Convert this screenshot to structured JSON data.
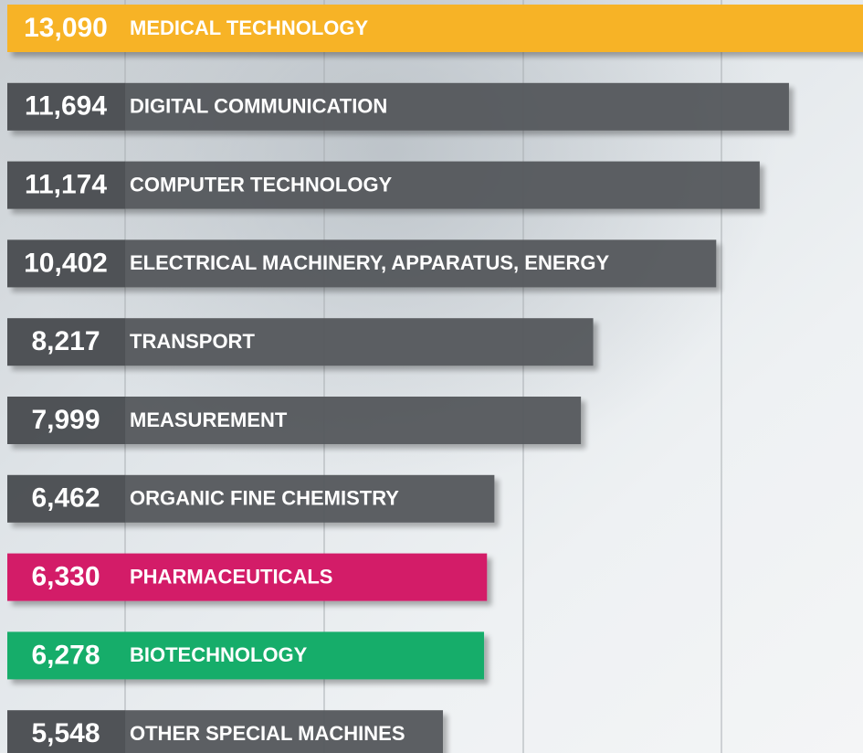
{
  "chart_data": {
    "type": "bar",
    "categories": [
      "MEDICAL TECHNOLOGY",
      "DIGITAL COMMUNICATION",
      "COMPUTER TECHNOLOGY",
      "ELECTRICAL MACHINERY, APPARATUS, ENERGY",
      "TRANSPORT",
      "MEASUREMENT",
      "ORGANIC FINE CHEMISTRY",
      "PHARMACEUTICALS",
      "BIOTECHNOLOGY",
      "OTHER SPECIAL MACHINES"
    ],
    "values": [
      13090,
      11694,
      11174,
      10402,
      8217,
      7999,
      6462,
      6330,
      6278,
      5548
    ],
    "value_labels": [
      "13,090",
      "11,694",
      "11,174",
      "10,402",
      "8,217",
      "7,999",
      "6,462",
      "6,330",
      "6,278",
      "5,548"
    ],
    "colors": [
      "#f7b325",
      "#55585b",
      "#55585b",
      "#55585b",
      "#55585b",
      "#55585b",
      "#55585b",
      "#d31a68",
      "#17ad6b",
      "#55585b"
    ]
  }
}
